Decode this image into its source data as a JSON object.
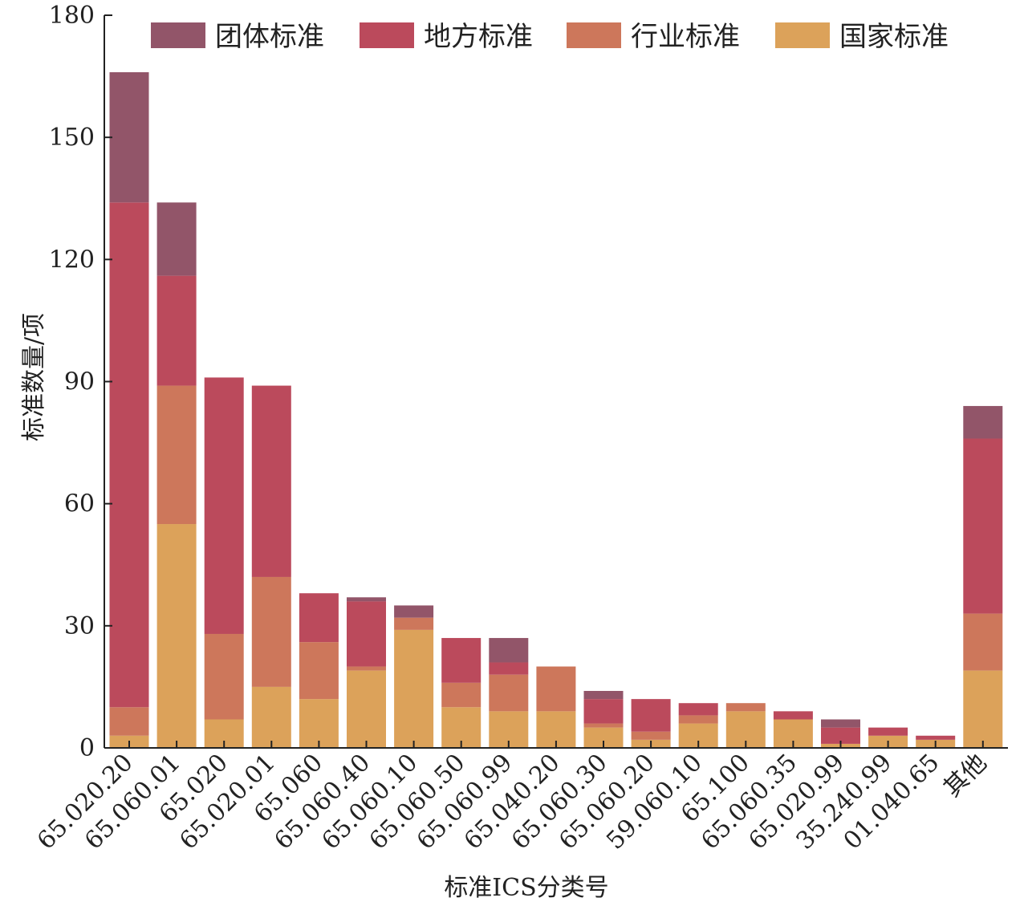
{
  "chart_data": {
    "type": "bar",
    "stacked": true,
    "title": "",
    "xlabel": "标准ICS分类号",
    "ylabel": "标准数量/项",
    "ylim": [
      0,
      180
    ],
    "yticks": [
      0,
      30,
      60,
      90,
      120,
      150,
      180
    ],
    "legend_position": "top",
    "categories": [
      "65.020.20",
      "65.060.01",
      "65.020",
      "65.020.01",
      "65.060",
      "65.060.40",
      "65.060.10",
      "65.060.50",
      "65.060.99",
      "65.040.20",
      "65.060.30",
      "65.060.20",
      "59.060.10",
      "65.100",
      "65.060.35",
      "65.020.99",
      "35.240.99",
      "01.040.65",
      "其他"
    ],
    "series": [
      {
        "name": "国家标准",
        "color": "#dca25a",
        "values": [
          3,
          55,
          7,
          15,
          12,
          19,
          29,
          10,
          9,
          9,
          5,
          2,
          6,
          9,
          7,
          1,
          3,
          2,
          19
        ]
      },
      {
        "name": "行业标准",
        "color": "#cd775b",
        "values": [
          7,
          34,
          21,
          27,
          14,
          1,
          3,
          6,
          9,
          11,
          1,
          2,
          2,
          2,
          0,
          0,
          0,
          0,
          14
        ]
      },
      {
        "name": "地方标准",
        "color": "#bb4a5c",
        "values": [
          124,
          27,
          63,
          47,
          12,
          16,
          0,
          11,
          3,
          0,
          6,
          8,
          3,
          0,
          2,
          4,
          2,
          1,
          43
        ]
      },
      {
        "name": "团体标准",
        "color": "#925569",
        "values": [
          32,
          18,
          0,
          0,
          0,
          1,
          3,
          0,
          6,
          0,
          2,
          0,
          0,
          0,
          0,
          2,
          0,
          0,
          8
        ]
      }
    ],
    "legend_order": [
      "团体标准",
      "地方标准",
      "行业标准",
      "国家标准"
    ]
  }
}
